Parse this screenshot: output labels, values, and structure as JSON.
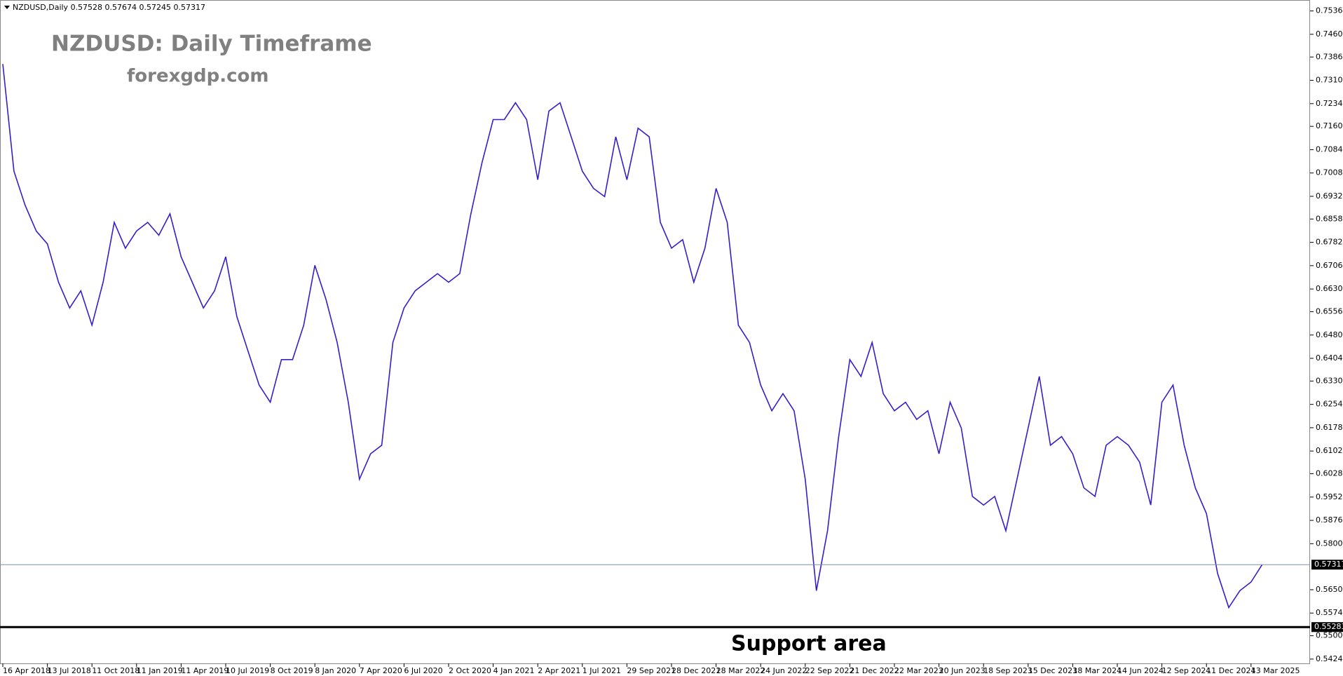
{
  "chart_data": {
    "type": "line",
    "header": "NZDUSD,Daily  0.57528 0.57674 0.57245 0.57317",
    "title": "NZDUSD: Daily Timeframe",
    "subtitle": "forexgdp.com",
    "annotation": "Support area",
    "current_price": 0.57317,
    "support_level": 0.55283,
    "categories": [
      "16 Apr 2018",
      null,
      null,
      null,
      "13 Jul 2018",
      null,
      null,
      null,
      "11 Oct 2018",
      null,
      null,
      null,
      "11 Jan 2019",
      null,
      null,
      null,
      "11 Apr 2019",
      null,
      null,
      null,
      "10 Jul 2019",
      null,
      null,
      null,
      "8 Oct 2019",
      null,
      null,
      null,
      "8 Jan 2020",
      null,
      null,
      null,
      "7 Apr 2020",
      null,
      null,
      null,
      "6 Jul 2020",
      null,
      null,
      null,
      "2 Oct 2020",
      null,
      null,
      null,
      "4 Jan 2021",
      null,
      null,
      null,
      "2 Apr 2021",
      null,
      null,
      null,
      "1 Jul 2021",
      null,
      null,
      null,
      "29 Sep 2021",
      null,
      null,
      null,
      "28 Dec 2021",
      null,
      null,
      null,
      "28 Mar 2022",
      null,
      null,
      null,
      "24 Jun 2022",
      null,
      null,
      null,
      "22 Sep 2022",
      null,
      null,
      null,
      "21 Dec 2022",
      null,
      null,
      null,
      "22 Mar 2023",
      null,
      null,
      null,
      "20 Jun 2023",
      null,
      null,
      null,
      "18 Sep 2023",
      null,
      null,
      null,
      "15 Dec 2023",
      null,
      null,
      null,
      "18 Mar 2024",
      null,
      null,
      null,
      "14 Jun 2024",
      null,
      null,
      null,
      "12 Sep 2024",
      null,
      null,
      null,
      "11 Dec 2024",
      null,
      null,
      null,
      "13 Mar 2025",
      null
    ],
    "series": [
      {
        "color": "#3a1cc8",
        "values": [
          0.7363,
          0.7014,
          0.6903,
          0.6819,
          0.6777,
          0.6652,
          0.6568,
          0.6624,
          0.6512,
          0.6652,
          0.6847,
          0.6763,
          0.6819,
          0.6847,
          0.6805,
          0.6875,
          0.6735,
          0.6652,
          0.6568,
          0.6624,
          0.6735,
          0.654,
          0.6428,
          0.6317,
          0.6261,
          0.64,
          0.64,
          0.6512,
          0.6707,
          0.6596,
          0.6456,
          0.6261,
          0.601,
          0.6093,
          0.6121,
          0.6456,
          0.6568,
          0.6624,
          0.6652,
          0.668,
          0.6652,
          0.668,
          0.6875,
          0.7042,
          0.7182,
          0.7182,
          0.7237,
          0.7182,
          0.6986,
          0.721,
          0.7237,
          0.7126,
          0.7014,
          0.6958,
          0.6931,
          0.7126,
          0.6986,
          0.7154,
          0.7126,
          0.6847,
          0.6763,
          0.6791,
          0.6652,
          0.6763,
          0.6958,
          0.6847,
          0.6512,
          0.6456,
          0.6317,
          0.6233,
          0.6289,
          0.6233,
          0.601,
          0.5647,
          0.5842,
          0.6149,
          0.64,
          0.6345,
          0.6456,
          0.6289,
          0.6233,
          0.6261,
          0.6205,
          0.6233,
          0.6093,
          0.6261,
          0.6177,
          0.5954,
          0.5926,
          0.5954,
          0.5842,
          0.601,
          0.6177,
          0.6345,
          0.6121,
          0.6149,
          0.6093,
          0.5982,
          0.5954,
          0.6121,
          0.6149,
          0.6121,
          0.6066,
          0.5926,
          0.6261,
          0.6317,
          0.6121,
          0.5982,
          0.5898,
          0.5703,
          0.5592,
          0.5647,
          0.5675,
          0.5732
        ]
      }
    ],
    "ylim": [
      0.541,
      0.7558
    ],
    "yticks": [
      {
        "value": 0.7536,
        "label": "0.75360"
      },
      {
        "value": 0.746,
        "label": "0.74600"
      },
      {
        "value": 0.7386,
        "label": "0.73860"
      },
      {
        "value": 0.731,
        "label": "0.73100"
      },
      {
        "value": 0.7234,
        "label": "0.72340"
      },
      {
        "value": 0.716,
        "label": "0.71600"
      },
      {
        "value": 0.7084,
        "label": "0.70840"
      },
      {
        "value": 0.7008,
        "label": "0.70080"
      },
      {
        "value": 0.6932,
        "label": "0.69320"
      },
      {
        "value": 0.6858,
        "label": "0.68580"
      },
      {
        "value": 0.6782,
        "label": "0.67820"
      },
      {
        "value": 0.6706,
        "label": "0.67060"
      },
      {
        "value": 0.663,
        "label": "0.66300"
      },
      {
        "value": 0.6556,
        "label": "0.65560"
      },
      {
        "value": 0.648,
        "label": "0.64800"
      },
      {
        "value": 0.6404,
        "label": "0.64040"
      },
      {
        "value": 0.633,
        "label": "0.63300"
      },
      {
        "value": 0.6254,
        "label": "0.62540"
      },
      {
        "value": 0.6178,
        "label": "0.61780"
      },
      {
        "value": 0.6102,
        "label": "0.61020"
      },
      {
        "value": 0.6028,
        "label": "0.60280"
      },
      {
        "value": 0.5952,
        "label": "0.59520"
      },
      {
        "value": 0.5876,
        "label": "0.58760"
      },
      {
        "value": 0.58,
        "label": "0.58000"
      },
      {
        "value": 0.565,
        "label": "0.56500"
      },
      {
        "value": 0.5574,
        "label": "0.55740"
      },
      {
        "value": 0.55,
        "label": "0.55000"
      },
      {
        "value": 0.5424,
        "label": "0.54240"
      }
    ],
    "grid": false
  }
}
